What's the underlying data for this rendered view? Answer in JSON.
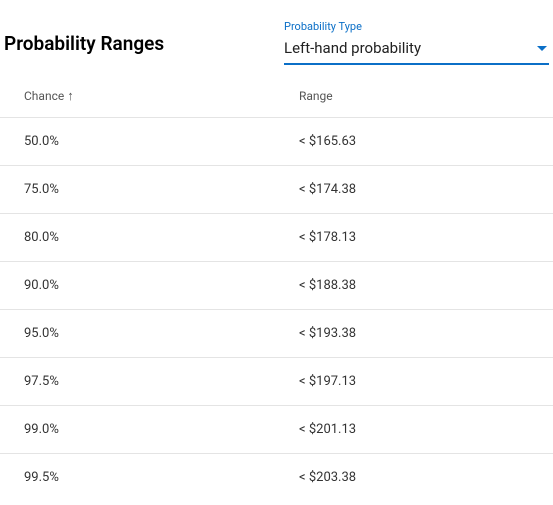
{
  "header": {
    "title": "Probability Ranges",
    "dropdown": {
      "label": "Probability Type",
      "value": "Left-hand probability"
    }
  },
  "table": {
    "columns": {
      "chance": "Chance",
      "range": "Range"
    },
    "sort_indicator": "↑",
    "rows": [
      {
        "chance": "50.0%",
        "range": "< $165.63"
      },
      {
        "chance": "75.0%",
        "range": "< $174.38"
      },
      {
        "chance": "80.0%",
        "range": "< $178.13"
      },
      {
        "chance": "90.0%",
        "range": "< $188.38"
      },
      {
        "chance": "95.0%",
        "range": "< $193.38"
      },
      {
        "chance": "97.5%",
        "range": "< $197.13"
      },
      {
        "chance": "99.0%",
        "range": "< $201.13"
      },
      {
        "chance": "99.5%",
        "range": "< $203.38"
      }
    ]
  },
  "style": {
    "accent_color": "#0b6fc7",
    "border_color": "#e4e4e4",
    "text_color": "#333333",
    "header_text_color": "#555555",
    "background_color": "#ffffff"
  }
}
